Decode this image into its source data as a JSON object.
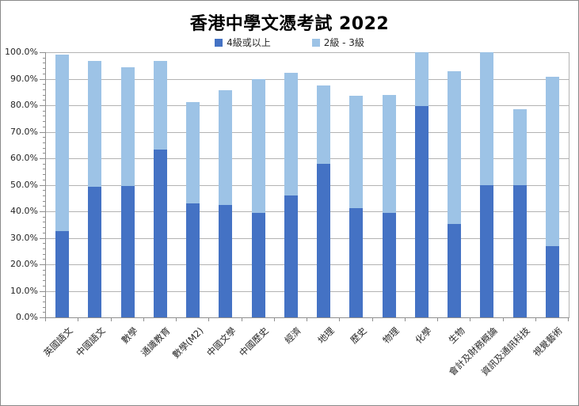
{
  "frame": {
    "border_color": "#8a8a8a",
    "background": "#ffffff"
  },
  "chart_data": {
    "type": "bar",
    "stacked": true,
    "title": "香港中學文憑考試 2022",
    "xlabel": "",
    "ylabel": "",
    "ylim": [
      0,
      100
    ],
    "y_major_step": 10,
    "y_minor_step": 2,
    "grid": true,
    "legend_position": "top-center",
    "axis_color": "#8f8f8f",
    "gridline_color": "#b3b3b3",
    "y_tick_labels": [
      "0.0%",
      "10.0%",
      "20.0%",
      "30.0%",
      "40.0%",
      "50.0%",
      "60.0%",
      "70.0%",
      "80.0%",
      "90.0%",
      "100.0%"
    ],
    "categories": [
      "英國語文",
      "中國語文",
      "數學",
      "通識教育",
      "數學(M2)",
      "中國文學",
      "中國歷史",
      "經濟",
      "地理",
      "歷史",
      "物理",
      "化學",
      "生物",
      "會計及財務概論",
      "資訊及通訊科技",
      "視覺藝術"
    ],
    "series": [
      {
        "name": "4級或以上",
        "color": "#4472C4",
        "values": [
          32.5,
          49.3,
          49.7,
          63.3,
          43.0,
          42.4,
          39.5,
          46.0,
          57.9,
          41.2,
          39.5,
          79.7,
          35.3,
          49.8,
          49.8,
          26.8
        ]
      },
      {
        "name": "2級 - 3級",
        "color": "#9DC3E6",
        "values": [
          66.6,
          47.3,
          44.7,
          33.4,
          38.2,
          43.4,
          50.5,
          46.3,
          29.5,
          42.3,
          44.4,
          20.3,
          57.4,
          50.2,
          28.6,
          63.9
        ]
      }
    ],
    "stack_totals": [
      99.1,
      96.6,
      94.4,
      96.7,
      81.2,
      85.8,
      90.0,
      92.3,
      87.4,
      83.5,
      83.9,
      100.0,
      92.7,
      100.0,
      78.4,
      90.7
    ]
  }
}
